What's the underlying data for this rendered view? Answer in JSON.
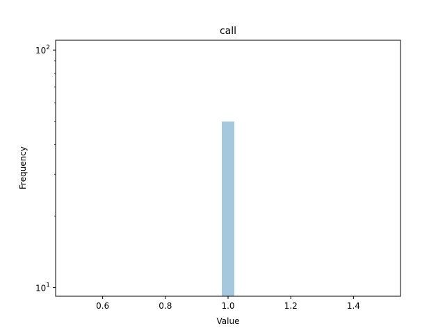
{
  "chart_data": {
    "type": "bar",
    "title": "call",
    "xlabel": "Value",
    "ylabel": "Frequency",
    "xlim": [
      0.45,
      1.55
    ],
    "ylim": [
      9.2,
      110
    ],
    "yscale": "log",
    "grid": false,
    "bar_color": "#a6c8df",
    "xticks": [
      {
        "value": 0.6,
        "label": "0.6"
      },
      {
        "value": 0.8,
        "label": "0.8"
      },
      {
        "value": 1.0,
        "label": "1.0"
      },
      {
        "value": 1.2,
        "label": "1.2"
      },
      {
        "value": 1.4,
        "label": "1.4"
      }
    ],
    "yticks": [
      {
        "value": 10,
        "base": "10",
        "exp": "1"
      },
      {
        "value": 100,
        "base": "10",
        "exp": "2"
      }
    ],
    "bars": [
      {
        "x0": 0.98,
        "x1": 1.02,
        "value": 50
      }
    ]
  }
}
